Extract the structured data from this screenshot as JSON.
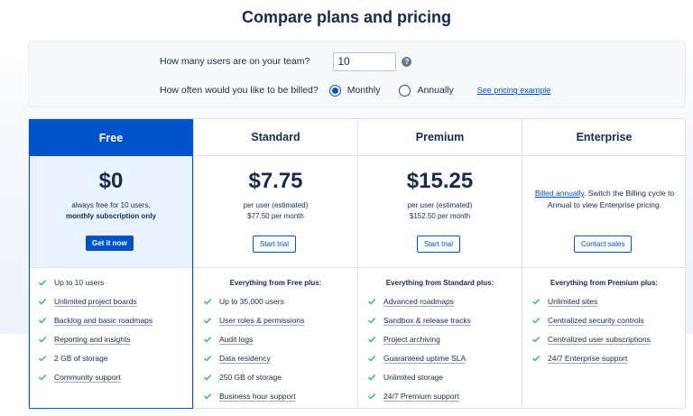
{
  "title": "Compare plans and pricing",
  "controls": {
    "users_question": "How many users are on your team?",
    "users_value": "10",
    "billing_question": "How often would you like to be billed?",
    "monthly_label": "Monthly",
    "annually_label": "Annually",
    "pricing_link": "See pricing example",
    "selected_billing": "Monthly"
  },
  "plans": [
    {
      "name": "Free",
      "price": "$0",
      "sub1": "always free for 10 users,",
      "sub2": "monthly subscription only",
      "button": "Get it now",
      "features_header": "",
      "features": [
        "Up to 10 users",
        "Unlimited project boards",
        "Backlog and basic roadmaps",
        "Reporting and insights",
        "2 GB of storage",
        "Community support"
      ]
    },
    {
      "name": "Standard",
      "price": "$7.75",
      "sub1": "per user (estimated)",
      "sub2": "$77.50 per month",
      "button": "Start trial",
      "features_header": "Everything from Free plus:",
      "features": [
        "Up to 35,000 users",
        "User roles & permissions",
        "Audit logs",
        "Data residency",
        "250 GB of storage",
        "Business hour support"
      ]
    },
    {
      "name": "Premium",
      "price": "$15.25",
      "sub1": "per user (estimated)",
      "sub2": "$152.50 per month",
      "button": "Start trial",
      "features_header": "Everything from Standard plus:",
      "features": [
        "Advanced roadmaps",
        "Sandbox & release tracks",
        "Project archiving",
        "Guaranteed uptime SLA",
        "Unlimited storage",
        "24/7 Premium support"
      ]
    },
    {
      "name": "Enterprise",
      "note_link": "Billed annually",
      "note_text": ". Switch the Billing cycle to Annual to view Enterprise pricing.",
      "button": "Contact sales",
      "features_header": "Everything from Premium plus:",
      "features": [
        "Unlimited sites",
        "Centralized security controls",
        "Centralized user subscriptions",
        "24/7 Enterprise support"
      ]
    }
  ],
  "colors": {
    "accent": "#0052cc",
    "check": "#36b37e",
    "text": "#172b4d"
  },
  "icons": {
    "help": "question-circle-icon",
    "check": "check-icon"
  }
}
